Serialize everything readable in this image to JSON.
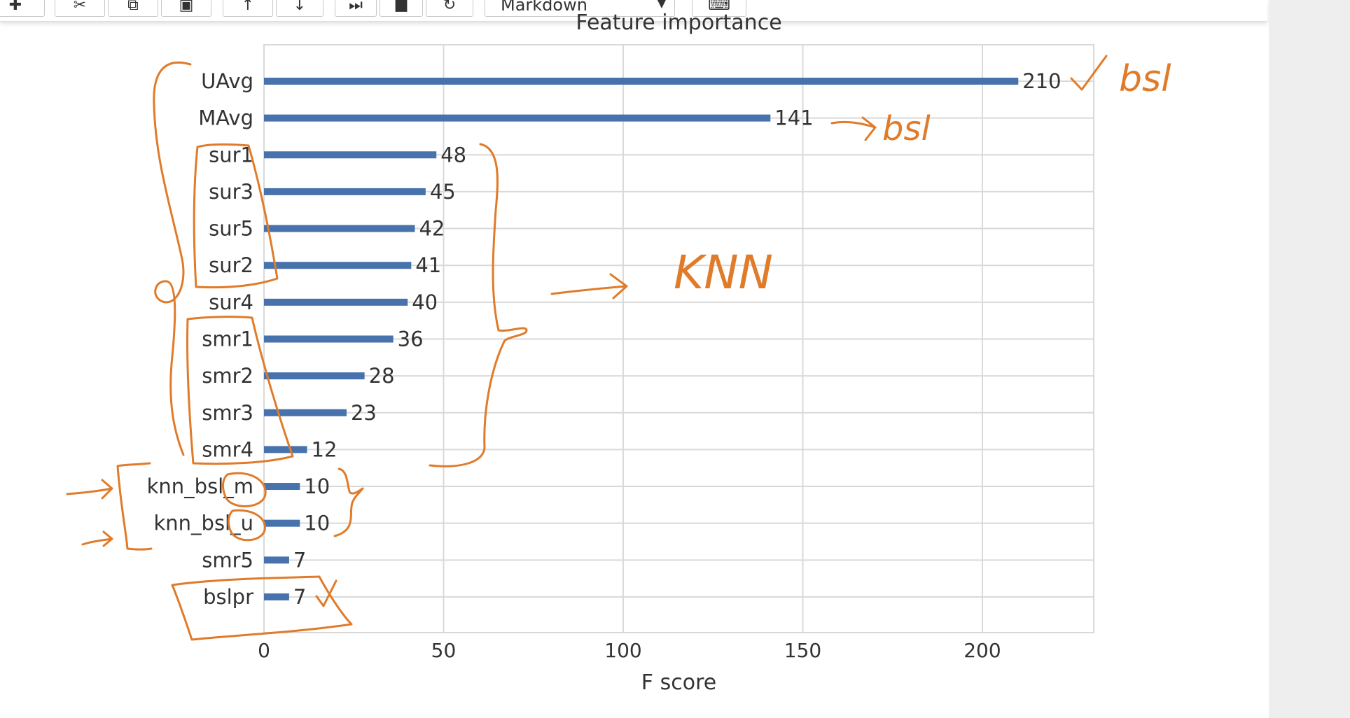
{
  "toolbar": {
    "cell_type": "Markdown",
    "icons": [
      "plus-icon",
      "cut-icon",
      "copy-icon",
      "paste-icon",
      "move-up-icon",
      "move-down-icon",
      "run-icon",
      "stop-icon",
      "restart-icon",
      "keyboard-icon"
    ]
  },
  "colors": {
    "bar": "#4872ab",
    "ink": "#e07b2a",
    "grid": "#d9d9d9",
    "text": "#333333"
  },
  "chart_data": {
    "type": "bar",
    "orientation": "horizontal",
    "title": "Feature importance",
    "xlabel": "F score",
    "ylabel": "",
    "xlim": [
      0,
      231
    ],
    "xticks": [
      0,
      50,
      100,
      150,
      200
    ],
    "grid": true,
    "categories": [
      "UAvg",
      "MAvg",
      "sur1",
      "sur3",
      "sur5",
      "sur2",
      "sur4",
      "smr1",
      "smr2",
      "smr3",
      "smr4",
      "knn_bsl_m",
      "knn_bsl_u",
      "smr5",
      "bslpr"
    ],
    "values": [
      210,
      141,
      48,
      45,
      42,
      41,
      40,
      36,
      28,
      23,
      12,
      10,
      10,
      7,
      7
    ]
  },
  "annotations": {
    "labels": [
      "bsl",
      "bsl",
      "KNN"
    ]
  }
}
